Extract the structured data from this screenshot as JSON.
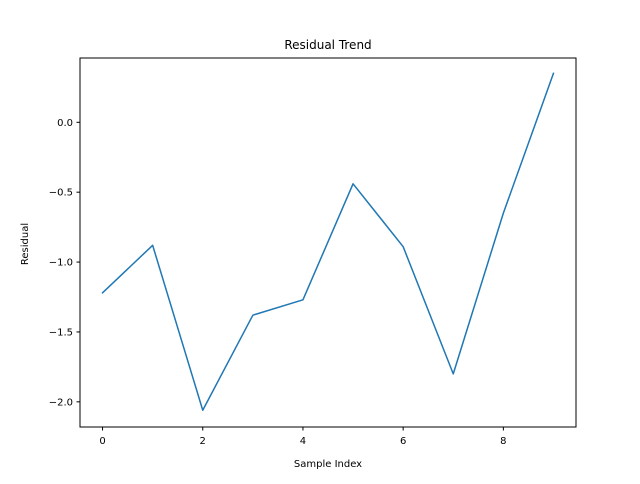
{
  "chart_data": {
    "type": "line",
    "title": "Residual Trend",
    "xlabel": "Sample Index",
    "ylabel": "Residual",
    "x": [
      0,
      1,
      2,
      3,
      4,
      5,
      6,
      7,
      8,
      9
    ],
    "series": [
      {
        "values": [
          -1.22,
          -0.88,
          -2.06,
          -1.38,
          -1.27,
          -0.44,
          -0.89,
          -1.8,
          -0.65,
          0.35
        ]
      }
    ],
    "xlim": [
      -0.45,
      9.45
    ],
    "ylim": [
      -2.18,
      0.46
    ],
    "xticks": [
      0,
      2,
      4,
      6,
      8
    ],
    "xtick_labels": [
      "0",
      "2",
      "4",
      "6",
      "8"
    ],
    "yticks": [
      -2.0,
      -1.5,
      -1.0,
      -0.5,
      0.0
    ],
    "ytick_labels": [
      "−2.0",
      "−1.5",
      "−1.0",
      "−0.5",
      "0.0"
    ],
    "grid": false,
    "legend": "none",
    "line_color": "#1f77b4"
  }
}
